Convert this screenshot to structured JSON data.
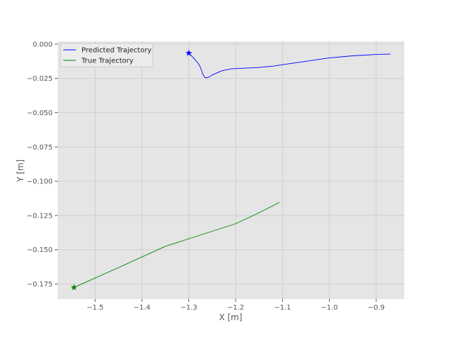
{
  "chart_data": {
    "type": "line",
    "title": "",
    "xlabel": "X [m]",
    "ylabel": "Y [m]",
    "xlim": [
      -1.58,
      -0.84
    ],
    "ylim": [
      -0.186,
      0.002
    ],
    "xticks": [
      -1.5,
      -1.4,
      -1.3,
      -1.2,
      -1.1,
      -1.0,
      -0.9
    ],
    "xtick_labels": [
      "−1.5",
      "−1.4",
      "−1.3",
      "−1.2",
      "−1.1",
      "−1.0",
      "−0.9"
    ],
    "yticks": [
      0.0,
      -0.025,
      -0.05,
      -0.075,
      -0.1,
      -0.125,
      -0.15,
      -0.175
    ],
    "ytick_labels": [
      "0.000",
      "−0.025",
      "−0.050",
      "−0.075",
      "−0.100",
      "−0.125",
      "−0.150",
      "−0.175"
    ],
    "grid": true,
    "legend_position": "top-left",
    "colors": {
      "background": "#e5e5e5",
      "grid": "#cfcfcf",
      "predicted": "#0000ff",
      "true": "#008000"
    },
    "series": [
      {
        "name": "Predicted Trajectory",
        "color": "#0000ff",
        "marker": "star",
        "start": [
          -1.3,
          -0.0065
        ],
        "x": [
          -1.3,
          -1.29,
          -1.28,
          -1.275,
          -1.27,
          -1.265,
          -1.26,
          -1.25,
          -1.23,
          -1.21,
          -1.18,
          -1.15,
          -1.12,
          -1.09,
          -1.05,
          -1.0,
          -0.95,
          -0.9,
          -0.87
        ],
        "y": [
          -0.0065,
          -0.01,
          -0.014,
          -0.017,
          -0.022,
          -0.0245,
          -0.0245,
          -0.0225,
          -0.0195,
          -0.018,
          -0.0175,
          -0.017,
          -0.016,
          -0.0145,
          -0.0125,
          -0.01,
          -0.0085,
          -0.0075,
          -0.0072
        ]
      },
      {
        "name": "True Trajectory",
        "color": "#008000",
        "marker": "star",
        "start": [
          -1.545,
          -0.1775
        ],
        "x": [
          -1.545,
          -1.45,
          -1.35,
          -1.25,
          -1.2,
          -1.15,
          -1.107
        ],
        "y": [
          -0.1775,
          -0.163,
          -0.1475,
          -0.1365,
          -0.131,
          -0.123,
          -0.1155
        ]
      }
    ]
  }
}
